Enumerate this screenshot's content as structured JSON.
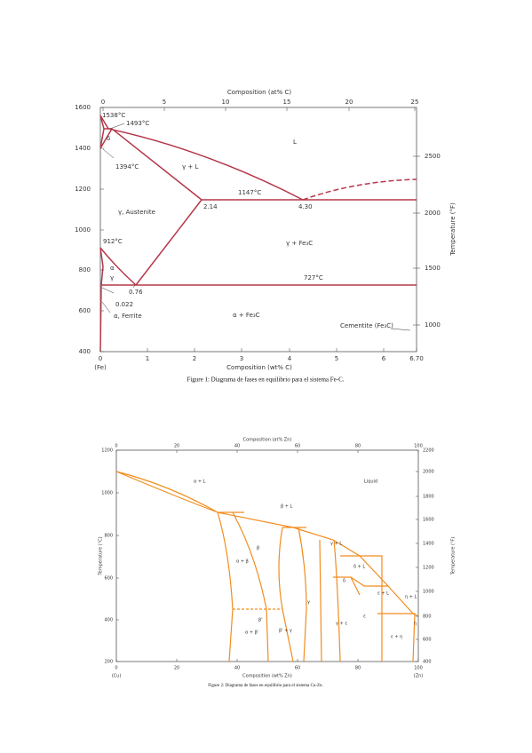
{
  "figure1": {
    "top_axis_label": "Composition (at% C)",
    "top_ticks": [
      "0",
      "5",
      "10",
      "15",
      "20",
      "25"
    ],
    "left_ticks": [
      "1600",
      "1400",
      "1200",
      "1000",
      "800",
      "600",
      "400"
    ],
    "right_axis_label": "Temperature (°F)",
    "right_ticks": [
      "2500",
      "2000",
      "1500",
      "1000"
    ],
    "bottom_ticks": [
      "0",
      "1",
      "2",
      "3",
      "4",
      "5",
      "6",
      "6.70"
    ],
    "bottom_axis_label": "Composition (wt% C)",
    "left_end_label": "(Fe)",
    "labels": [
      "1538°C",
      "1493°C",
      "δ",
      "1394°C",
      "γ + L",
      "L",
      "1147°C",
      "2.14",
      "4.30",
      "γ, Austenite",
      "912°C",
      "γ + Fe₃C",
      "α",
      "γ",
      "727°C",
      "0.76",
      "0.022",
      "α, Ferrite",
      "α + Fe₃C",
      "Cementite (Fe₃C)"
    ],
    "caption": "Figure 1: Diagrama de fases en equilibrio para el sistema Fe-C."
  },
  "figure2": {
    "top_axis_label": "Composition (at% Zn)",
    "top_ticks": [
      "0",
      "20",
      "40",
      "60",
      "80",
      "100"
    ],
    "left_axis_label": "Temperature (°C)",
    "left_ticks": [
      "1200",
      "1000",
      "800",
      "600",
      "400",
      "200"
    ],
    "right_axis_label": "Temperature (°F)",
    "right_ticks": [
      "2200",
      "2000",
      "1800",
      "1600",
      "1400",
      "1200",
      "1000",
      "800",
      "600",
      "400"
    ],
    "bottom_ticks": [
      "0",
      "20",
      "40",
      "60",
      "80",
      "100"
    ],
    "bottom_axis_label": "Composition (wt% Zn)",
    "left_end_label": "(Cu)",
    "right_end_label": "(Zn)",
    "labels": [
      "α + L",
      "Liquid",
      "β + L",
      "β",
      "α + β",
      "γ",
      "γ + L",
      "δ + L",
      "δ",
      "ε",
      "ε + L",
      "η + L",
      "η",
      "α + β'",
      "β'",
      "β' + γ",
      "γ + ε",
      "ε + η"
    ],
    "caption": "Figure 2: Diagrama de fases en equilibrio para el sistema Cu-Zn."
  }
}
